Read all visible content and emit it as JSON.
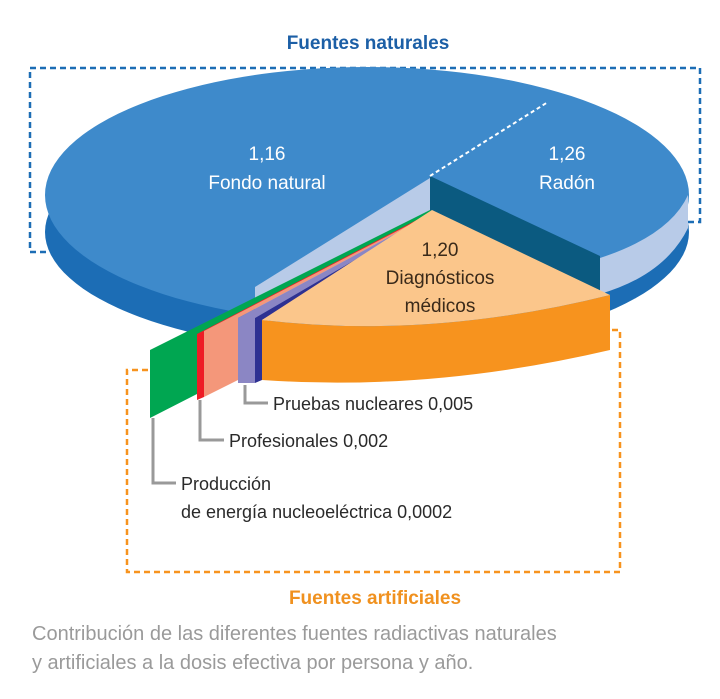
{
  "chart_data": {
    "type": "pie",
    "title": "Fuentes naturales",
    "subtitle": "Fuentes artificiales",
    "groups": [
      {
        "name": "Fuentes naturales",
        "slices": [
          "Fondo natural",
          "Radón"
        ]
      },
      {
        "name": "Fuentes artificiales",
        "slices": [
          "Diagnósticos médicos",
          "Pruebas nucleares",
          "Profesionales",
          "Producción de energía nucleoeléctrica"
        ]
      }
    ],
    "slices": [
      {
        "label": "Fondo natural",
        "value": 1.16,
        "value_text": "1,16",
        "color": "#3e8acb"
      },
      {
        "label": "Radón",
        "value": 1.26,
        "value_text": "1,26",
        "color": "#3e8acb"
      },
      {
        "label_line1": "Diagnósticos",
        "label_line2": "médicos",
        "label": "Diagnósticos médicos",
        "value": 1.2,
        "value_text": "1,20",
        "color": "#f7931e"
      },
      {
        "label": "Pruebas nucleares 0,005",
        "value": 0.005,
        "color": "#8b86c4"
      },
      {
        "label": "Profesionales 0,002",
        "value": 0.002,
        "color": "#ee1c25"
      },
      {
        "label_line1": "Producción",
        "label_line2": "de energía nucleoeléctrica 0,0002",
        "label": "Producción de energía nucleoeléctrica",
        "value": 0.0002,
        "color": "#00a651"
      }
    ],
    "caption_line1": "Contribución de las diferentes fuentes radiactivas naturales",
    "caption_line2": "y artificiales a la dosis efectiva por persona y año."
  }
}
